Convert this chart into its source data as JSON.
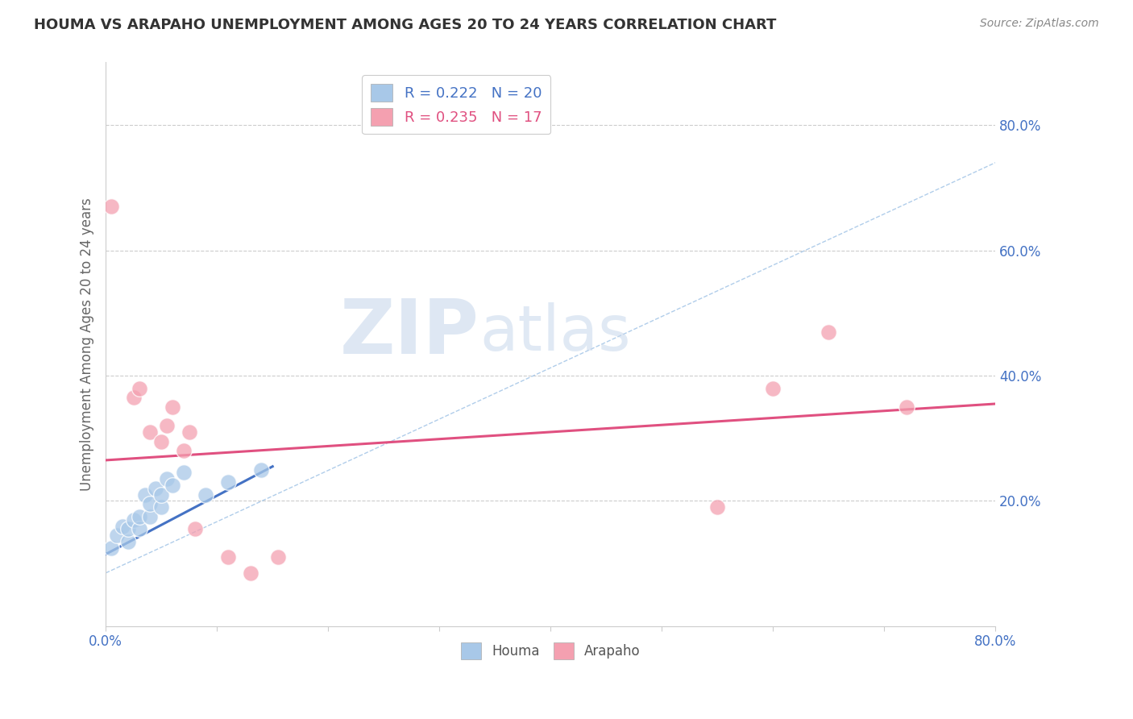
{
  "title": "HOUMA VS ARAPAHO UNEMPLOYMENT AMONG AGES 20 TO 24 YEARS CORRELATION CHART",
  "source": "Source: ZipAtlas.com",
  "ylabel": "Unemployment Among Ages 20 to 24 years",
  "xlim": [
    0.0,
    0.8
  ],
  "ylim": [
    0.0,
    0.9
  ],
  "xticks": [
    0.0,
    0.1,
    0.2,
    0.3,
    0.4,
    0.5,
    0.6,
    0.7,
    0.8
  ],
  "yticks": [
    0.0,
    0.2,
    0.4,
    0.6,
    0.8
  ],
  "houma_R": 0.222,
  "houma_N": 20,
  "arapaho_R": 0.235,
  "arapaho_N": 17,
  "houma_color": "#a8c8e8",
  "arapaho_color": "#f4a0b0",
  "houma_line_color": "#4472c4",
  "arapaho_line_color": "#e05080",
  "ref_line_color": "#a8c8e8",
  "tick_label_color": "#4472c4",
  "background_color": "#ffffff",
  "grid_color": "#cccccc",
  "watermark_zip": "ZIP",
  "watermark_atlas": "atlas",
  "houma_x": [
    0.005,
    0.01,
    0.015,
    0.02,
    0.02,
    0.025,
    0.03,
    0.03,
    0.035,
    0.04,
    0.04,
    0.045,
    0.05,
    0.05,
    0.055,
    0.06,
    0.07,
    0.09,
    0.11,
    0.14
  ],
  "houma_y": [
    0.125,
    0.145,
    0.16,
    0.135,
    0.155,
    0.17,
    0.155,
    0.175,
    0.21,
    0.175,
    0.195,
    0.22,
    0.19,
    0.21,
    0.235,
    0.225,
    0.245,
    0.21,
    0.23,
    0.25
  ],
  "arapaho_x": [
    0.005,
    0.025,
    0.03,
    0.04,
    0.05,
    0.055,
    0.06,
    0.07,
    0.075,
    0.08,
    0.11,
    0.13,
    0.155,
    0.55,
    0.6,
    0.65,
    0.72
  ],
  "arapaho_y": [
    0.67,
    0.365,
    0.38,
    0.31,
    0.295,
    0.32,
    0.35,
    0.28,
    0.31,
    0.155,
    0.11,
    0.085,
    0.11,
    0.19,
    0.38,
    0.47,
    0.35
  ],
  "houma_trend_x": [
    0.0,
    0.15
  ],
  "houma_trend_y": [
    0.115,
    0.255
  ],
  "arapaho_trend_x": [
    0.0,
    0.8
  ],
  "arapaho_trend_y": [
    0.265,
    0.355
  ],
  "ref_line_x": [
    0.0,
    0.8
  ],
  "ref_line_y": [
    0.085,
    0.74
  ]
}
